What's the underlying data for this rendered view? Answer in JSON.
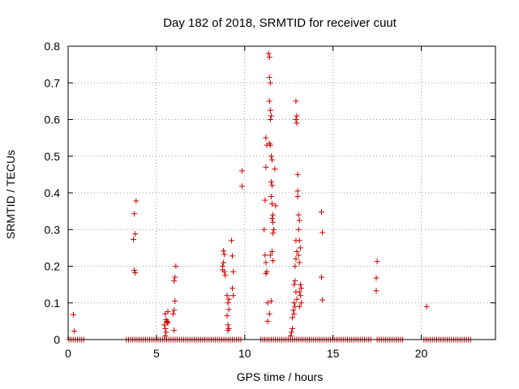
{
  "chart_data": {
    "type": "scatter",
    "title": "Day 182 of 2018, SRMTID for receiver cuut",
    "xlabel": "GPS time / hours",
    "ylabel": "SRMTID / TECUs",
    "xlim": [
      0,
      24.2
    ],
    "ylim": [
      0,
      0.8
    ],
    "xticks": [
      0,
      5,
      10,
      15,
      20
    ],
    "xtick_labels": [
      "0",
      "5",
      "10",
      "15",
      "20"
    ],
    "yticks": [
      0,
      0.1,
      0.2,
      0.3,
      0.4,
      0.5,
      0.6,
      0.7,
      0.8
    ],
    "ytick_labels": [
      "0",
      "0.1",
      "0.2",
      "0.3",
      "0.4",
      "0.5",
      "0.6",
      "0.7",
      "0.8"
    ],
    "grid": true,
    "marker": "+",
    "color": "#cc0000",
    "zero_runs": [
      {
        "start": 0.05,
        "end": 1.0
      },
      {
        "start": 3.3,
        "end": 9.8
      },
      {
        "start": 10.9,
        "end": 17.2
      },
      {
        "start": 17.5,
        "end": 19.0
      },
      {
        "start": 20.15,
        "end": 22.8
      }
    ],
    "zero_step": 0.12,
    "series": [
      {
        "name": "SRMTID",
        "points": [
          [
            0.3,
            0.068
          ],
          [
            0.35,
            0.023
          ],
          [
            3.7,
            0.273
          ],
          [
            3.75,
            0.343
          ],
          [
            3.8,
            0.288
          ],
          [
            3.85,
            0.378
          ],
          [
            3.75,
            0.189
          ],
          [
            3.8,
            0.182
          ],
          [
            5.5,
            0.07
          ],
          [
            5.55,
            0.054
          ],
          [
            5.6,
            0.048
          ],
          [
            5.65,
            0.076
          ],
          [
            5.45,
            0.04
          ],
          [
            5.5,
            0.03
          ],
          [
            5.55,
            0.02
          ],
          [
            5.6,
            0.05
          ],
          [
            5.65,
            0.045
          ],
          [
            5.5,
            0.01
          ],
          [
            5.95,
            0.07
          ],
          [
            6.0,
            0.08
          ],
          [
            6.05,
            0.105
          ],
          [
            6.0,
            0.16
          ],
          [
            6.05,
            0.17
          ],
          [
            6.1,
            0.2
          ],
          [
            6.0,
            0.025
          ],
          [
            8.75,
            0.2
          ],
          [
            8.8,
            0.242
          ],
          [
            8.85,
            0.232
          ],
          [
            8.8,
            0.21
          ],
          [
            8.85,
            0.185
          ],
          [
            8.9,
            0.175
          ],
          [
            8.75,
            0.19
          ],
          [
            9.0,
            0.12
          ],
          [
            9.05,
            0.1
          ],
          [
            9.1,
            0.082
          ],
          [
            9.0,
            0.065
          ],
          [
            9.05,
            0.04
          ],
          [
            9.1,
            0.03
          ],
          [
            9.05,
            0.025
          ],
          [
            9.1,
            0.11
          ],
          [
            9.25,
            0.27
          ],
          [
            9.3,
            0.228
          ],
          [
            9.35,
            0.185
          ],
          [
            9.3,
            0.14
          ],
          [
            9.35,
            0.12
          ],
          [
            9.85,
            0.46
          ],
          [
            9.85,
            0.418
          ],
          [
            11.1,
            0.3
          ],
          [
            11.15,
            0.38
          ],
          [
            11.2,
            0.47
          ],
          [
            11.25,
            0.53
          ],
          [
            11.2,
            0.55
          ],
          [
            11.15,
            0.23
          ],
          [
            11.2,
            0.21
          ],
          [
            11.25,
            0.185
          ],
          [
            11.2,
            0.18
          ],
          [
            11.3,
            0.1
          ],
          [
            11.3,
            0.05
          ],
          [
            11.35,
            0.78
          ],
          [
            11.4,
            0.77
          ],
          [
            11.4,
            0.715
          ],
          [
            11.45,
            0.7
          ],
          [
            11.4,
            0.65
          ],
          [
            11.45,
            0.625
          ],
          [
            11.5,
            0.61
          ],
          [
            11.45,
            0.6
          ],
          [
            11.4,
            0.535
          ],
          [
            11.45,
            0.53
          ],
          [
            11.5,
            0.5
          ],
          [
            11.55,
            0.49
          ],
          [
            11.5,
            0.43
          ],
          [
            11.55,
            0.42
          ],
          [
            11.5,
            0.39
          ],
          [
            11.55,
            0.37
          ],
          [
            11.6,
            0.34
          ],
          [
            11.55,
            0.33
          ],
          [
            11.6,
            0.32
          ],
          [
            11.65,
            0.3
          ],
          [
            11.6,
            0.29
          ],
          [
            11.55,
            0.24
          ],
          [
            11.6,
            0.215
          ],
          [
            11.45,
            0.23
          ],
          [
            11.4,
            0.07
          ],
          [
            11.5,
            0.105
          ],
          [
            11.7,
            0.465
          ],
          [
            11.75,
            0.365
          ],
          [
            12.6,
            0.01
          ],
          [
            12.65,
            0.02
          ],
          [
            12.7,
            0.03
          ],
          [
            12.7,
            0.06
          ],
          [
            12.75,
            0.08
          ],
          [
            12.8,
            0.1
          ],
          [
            12.8,
            0.15
          ],
          [
            12.85,
            0.2
          ],
          [
            12.9,
            0.22
          ],
          [
            12.95,
            0.24
          ],
          [
            12.9,
            0.27
          ],
          [
            12.85,
            0.16
          ],
          [
            12.9,
            0.13
          ],
          [
            12.95,
            0.11
          ],
          [
            12.85,
            0.09
          ],
          [
            12.8,
            0.07
          ],
          [
            12.9,
            0.65
          ],
          [
            12.95,
            0.61
          ],
          [
            12.9,
            0.6
          ],
          [
            12.95,
            0.59
          ],
          [
            13.0,
            0.45
          ],
          [
            13.0,
            0.405
          ],
          [
            13.0,
            0.39
          ],
          [
            13.05,
            0.34
          ],
          [
            13.1,
            0.325
          ],
          [
            13.05,
            0.3
          ],
          [
            13.1,
            0.27
          ],
          [
            13.15,
            0.25
          ],
          [
            13.05,
            0.23
          ],
          [
            13.1,
            0.21
          ],
          [
            13.15,
            0.15
          ],
          [
            13.2,
            0.14
          ],
          [
            13.1,
            0.13
          ],
          [
            13.15,
            0.12
          ],
          [
            13.2,
            0.1
          ],
          [
            13.1,
            0.09
          ],
          [
            14.35,
            0.348
          ],
          [
            14.4,
            0.292
          ],
          [
            14.35,
            0.17
          ],
          [
            14.4,
            0.108
          ],
          [
            17.5,
            0.213
          ],
          [
            17.45,
            0.168
          ],
          [
            17.45,
            0.133
          ],
          [
            20.3,
            0.09
          ]
        ]
      }
    ]
  }
}
